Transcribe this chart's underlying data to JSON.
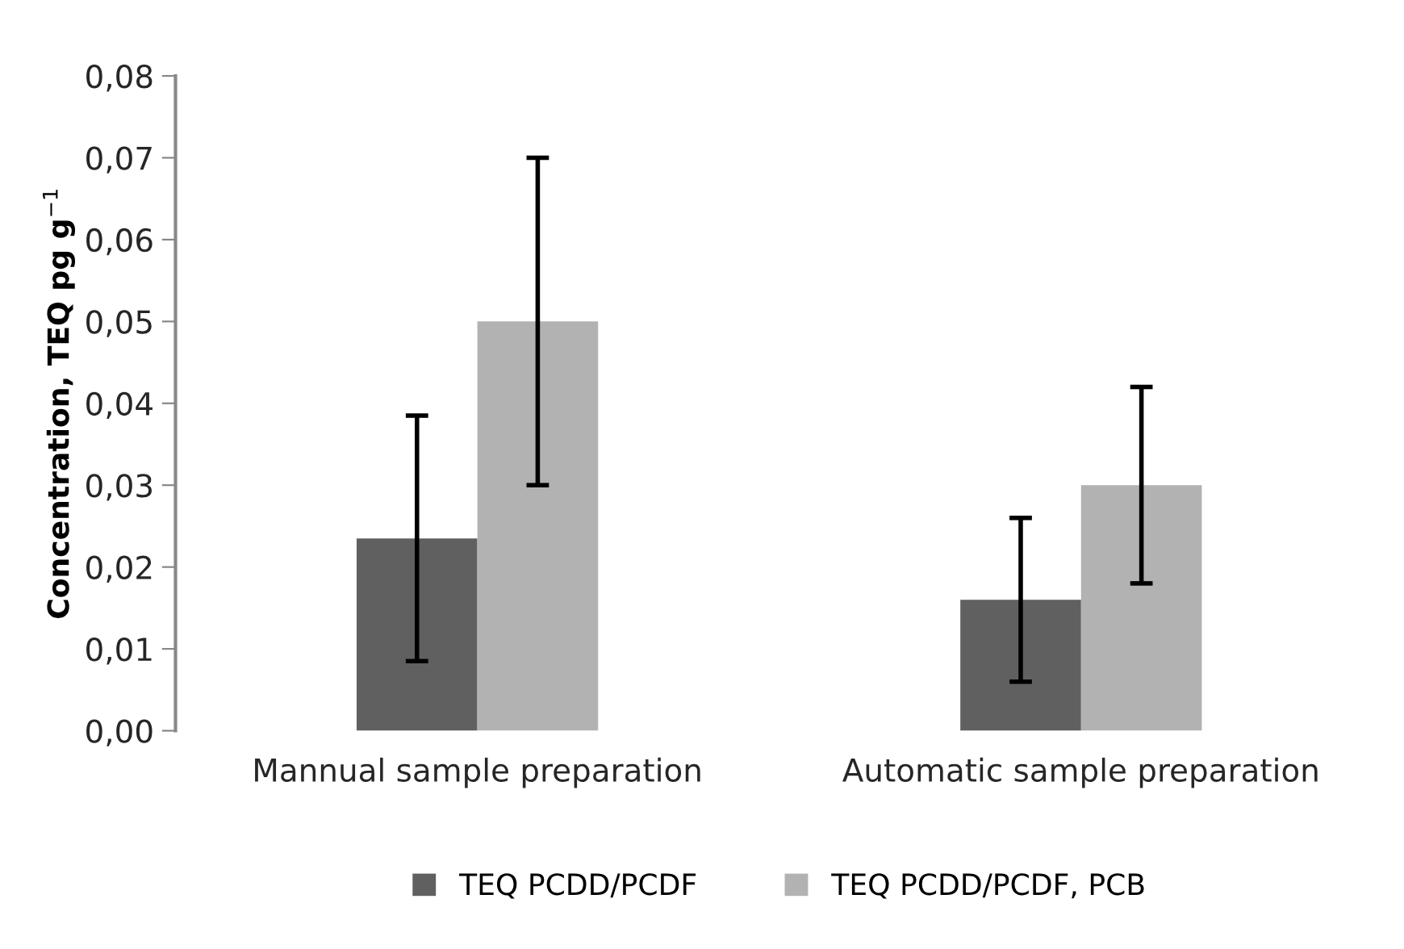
{
  "chart_data": {
    "type": "bar",
    "ylabel": "Concentration, TEQ pg g$^{−1}$",
    "categories": [
      "Mannual sample preparation",
      "Automatic sample preparation"
    ],
    "series": [
      {
        "name": "TEQ PCDD/PCDF",
        "color": "#606060",
        "values": [
          0.0235,
          0.016
        ],
        "errors": [
          0.015,
          0.01
        ]
      },
      {
        "name": "TEQ PCDD/PCDF, PCB",
        "color": "#b2b2b2",
        "values": [
          0.05,
          0.03
        ],
        "errors": [
          0.02,
          0.012
        ]
      }
    ],
    "ylim": [
      0,
      0.08
    ],
    "yticks": [
      {
        "value": 0,
        "label": "0,00"
      },
      {
        "value": 0.01,
        "label": "0,01"
      },
      {
        "value": 0.02,
        "label": "0,02"
      },
      {
        "value": 0.03,
        "label": "0,03"
      },
      {
        "value": 0.04,
        "label": "0,04"
      },
      {
        "value": 0.05,
        "label": "0,05"
      },
      {
        "value": 0.06,
        "label": "0,06"
      },
      {
        "value": 0.07,
        "label": "0,07"
      },
      {
        "value": 0.08,
        "label": "0,08"
      }
    ],
    "grid": false,
    "legend": "bottom"
  }
}
